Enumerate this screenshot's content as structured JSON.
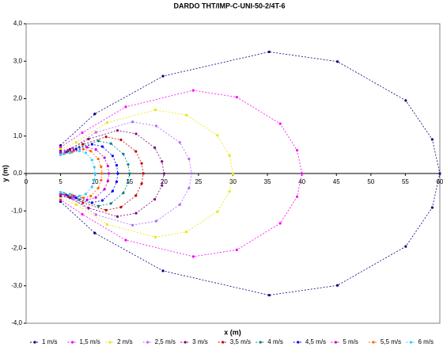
{
  "chart_data": {
    "type": "scatter",
    "title": "DARDO THT/IMP-C-UNI-50-2/4T-6",
    "x_label": "x (m)",
    "y_label": "y (m)",
    "xlim": [
      0,
      60
    ],
    "xticks": [
      0,
      5,
      10,
      15,
      20,
      25,
      30,
      35,
      40,
      45,
      50,
      55,
      60
    ],
    "ylim": [
      -4,
      4
    ],
    "yticks": [
      {
        "value": -4,
        "label": "-4,0"
      },
      {
        "value": -3,
        "label": "-3,0"
      },
      {
        "value": -2,
        "label": "-2,0"
      },
      {
        "value": -1,
        "label": "-1,0"
      },
      {
        "value": 0,
        "label": "0,0"
      },
      {
        "value": 1,
        "label": "1,0"
      },
      {
        "value": 2,
        "label": "2,0"
      },
      {
        "value": 3,
        "label": "3,0"
      },
      {
        "value": 4,
        "label": "4,0"
      }
    ],
    "series": [
      {
        "name": "1 m/s",
        "color": "#000080",
        "x": [
          5,
          9.95,
          19.85,
          35.25,
          45.15,
          55.05,
          58.9,
          60,
          58.9,
          55.05,
          45.15,
          35.25,
          19.85,
          9.95,
          5
        ],
        "values": [
          0.75,
          1.59,
          2.6,
          3.25,
          2.99,
          1.95,
          0.91,
          0,
          -0.91,
          -1.95,
          -2.99,
          -3.25,
          -2.6,
          -1.59,
          -0.75
        ]
      },
      {
        "name": "1,5 m/s",
        "color": "#ff00ff",
        "x": [
          5,
          8.15,
          14.45,
          24.25,
          30.55,
          36.85,
          39.3,
          40,
          39.3,
          36.85,
          30.55,
          24.25,
          14.45,
          8.15,
          5
        ],
        "values": [
          0.7,
          1.09,
          1.78,
          2.22,
          2.04,
          1.33,
          0.62,
          0,
          -0.62,
          -1.33,
          -2.04,
          -2.22,
          -1.78,
          -1.09,
          -0.7
        ]
      },
      {
        "name": "2 m/s",
        "color": "#e8e800",
        "x": [
          5,
          7.25,
          11.75,
          18.75,
          23.25,
          27.75,
          29.5,
          30,
          29.5,
          27.75,
          23.25,
          18.75,
          11.75,
          7.25,
          5
        ],
        "values": [
          0.65,
          0.83,
          1.36,
          1.7,
          1.56,
          1.02,
          0.48,
          0,
          -0.48,
          -1.02,
          -1.56,
          -1.7,
          -1.36,
          -0.83,
          -0.65
        ]
      },
      {
        "name": "2,5 m/s",
        "color": "#b266ff",
        "x": [
          5,
          6.71,
          10.13,
          15.45,
          18.87,
          22.29,
          23.62,
          24,
          23.62,
          22.29,
          18.87,
          15.45,
          10.13,
          6.71,
          5
        ],
        "values": [
          0.6,
          0.68,
          1.1,
          1.38,
          1.27,
          0.83,
          0.39,
          0,
          -0.39,
          -0.83,
          -1.27,
          -1.38,
          -1.1,
          -0.68,
          -0.6
        ]
      },
      {
        "name": "3 m/s",
        "color": "#800080",
        "x": [
          5,
          6.35,
          9.05,
          13.25,
          15.95,
          18.65,
          19.7,
          20,
          19.7,
          18.65,
          15.95,
          13.25,
          9.05,
          6.35,
          5
        ],
        "values": [
          0.6,
          0.65,
          0.92,
          1.15,
          1.06,
          0.69,
          0.32,
          0,
          -0.32,
          -0.69,
          -1.06,
          -1.15,
          -0.92,
          -0.65,
          -0.6
        ]
      },
      {
        "name": "3,5 m/s",
        "color": "#c00000",
        "x": [
          5,
          6.08,
          8.24,
          11.6,
          13.76,
          15.92,
          16.76,
          17,
          16.76,
          15.92,
          13.76,
          11.6,
          8.24,
          6.08,
          5
        ],
        "values": [
          0.55,
          0.6,
          0.78,
          0.98,
          0.9,
          0.59,
          0.27,
          0,
          -0.27,
          -0.59,
          -0.9,
          -0.98,
          -0.78,
          -0.6,
          -0.55
        ]
      },
      {
        "name": "4 m/s",
        "color": "#008080",
        "x": [
          5,
          5.9,
          7.7,
          10.5,
          12.3,
          14.1,
          14.8,
          15,
          14.8,
          14.1,
          12.3,
          10.5,
          7.7,
          5.9,
          5
        ],
        "values": [
          0.55,
          0.58,
          0.7,
          0.87,
          0.8,
          0.52,
          0.24,
          0,
          -0.24,
          -0.52,
          -0.8,
          -0.87,
          -0.7,
          -0.58,
          -0.55
        ]
      },
      {
        "name": "4,5 m/s",
        "color": "#0000ff",
        "x": [
          5,
          5.75,
          7.24,
          9.57,
          11.06,
          12.55,
          13.13,
          13.3,
          13.13,
          12.55,
          11.06,
          9.57,
          7.24,
          5.75,
          5
        ],
        "values": [
          0.55,
          0.57,
          0.65,
          0.78,
          0.72,
          0.47,
          0.22,
          0,
          -0.22,
          -0.47,
          -0.72,
          -0.78,
          -0.65,
          -0.57,
          -0.55
        ]
      },
      {
        "name": "5 m/s",
        "color": "#cc00cc",
        "x": [
          5,
          5.63,
          6.89,
          8.85,
          10.11,
          11.37,
          11.86,
          12,
          11.86,
          11.37,
          10.11,
          8.85,
          6.89,
          5.63,
          5
        ],
        "values": [
          0.55,
          0.57,
          0.6,
          0.7,
          0.64,
          0.42,
          0.2,
          0,
          -0.2,
          -0.42,
          -0.64,
          -0.7,
          -0.6,
          -0.57,
          -0.55
        ]
      },
      {
        "name": "5,5 m/s",
        "color": "#ff6600",
        "x": [
          5,
          5.54,
          6.62,
          8.3,
          9.38,
          10.46,
          10.88,
          11,
          10.88,
          10.46,
          9.38,
          8.3,
          6.62,
          5.54,
          5
        ],
        "values": [
          0.5,
          0.53,
          0.57,
          0.65,
          0.6,
          0.39,
          0.18,
          0,
          -0.18,
          -0.39,
          -0.6,
          -0.65,
          -0.57,
          -0.53,
          -0.5
        ]
      },
      {
        "name": "6 m/s",
        "color": "#33ccff",
        "x": [
          5,
          5.45,
          6.35,
          7.75,
          8.65,
          9.55,
          9.9,
          10,
          9.9,
          9.55,
          8.65,
          7.75,
          6.35,
          5.45,
          5
        ],
        "values": [
          0.5,
          0.52,
          0.55,
          0.6,
          0.55,
          0.36,
          0.17,
          0,
          -0.17,
          -0.36,
          -0.55,
          -0.6,
          -0.55,
          -0.52,
          -0.5
        ]
      }
    ]
  }
}
